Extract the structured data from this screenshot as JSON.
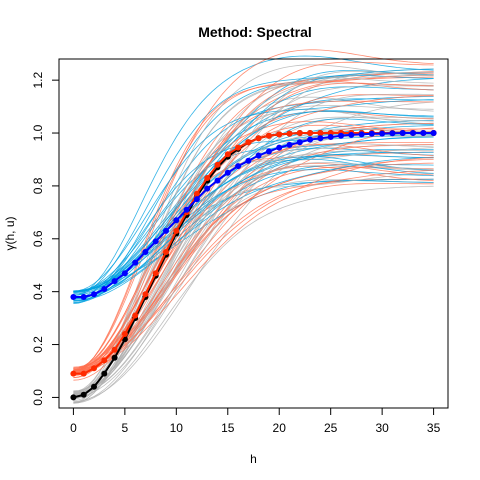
{
  "chart_data": {
    "type": "line",
    "title": "Method: Spectral",
    "xlabel": "h",
    "ylabel": "γ(h, u)",
    "xlim": [
      -1.4,
      36.4
    ],
    "ylim": [
      -0.04,
      1.28
    ],
    "xticks": [
      "0",
      "5",
      "10",
      "15",
      "20",
      "25",
      "30",
      "35"
    ],
    "yticks": [
      "0.0",
      "0.2",
      "0.4",
      "0.6",
      "0.8",
      "1.0",
      "1.2"
    ],
    "grid": false,
    "colors": {
      "black": "#000000",
      "red": "#ff2a00",
      "blue": "#0000ff",
      "cyan": "#00a0e0",
      "salmon": "#ff7050",
      "gray": "#b0b0b0"
    },
    "x": [
      0,
      1,
      2,
      3,
      4,
      5,
      6,
      7,
      8,
      9,
      10,
      11,
      12,
      13,
      14,
      15,
      16,
      17,
      18,
      19,
      20,
      21,
      22,
      23,
      24,
      25,
      26,
      27,
      28,
      29,
      30,
      31,
      32,
      33,
      34,
      35
    ],
    "series": [
      {
        "color": "black",
        "values": [
          0.0,
          0.01,
          0.04,
          0.09,
          0.15,
          0.22,
          0.3,
          0.38,
          0.46,
          0.54,
          0.62,
          0.69,
          0.76,
          0.82,
          0.87,
          0.91,
          0.94,
          0.965,
          0.98,
          0.99,
          0.995,
          0.998,
          1.0,
          1.0,
          1.0,
          1.0,
          1.0,
          1.0,
          1.0,
          1.0,
          1.0,
          1.0,
          1.0,
          1.0,
          1.0,
          1.0
        ]
      },
      {
        "color": "red",
        "values": [
          0.09,
          0.09,
          0.11,
          0.14,
          0.18,
          0.24,
          0.31,
          0.39,
          0.47,
          0.55,
          0.63,
          0.7,
          0.77,
          0.83,
          0.88,
          0.92,
          0.945,
          0.965,
          0.98,
          0.99,
          0.995,
          0.998,
          1.0,
          1.0,
          1.0,
          1.0,
          1.0,
          1.0,
          1.0,
          1.0,
          1.0,
          1.0,
          1.0,
          1.0,
          1.0,
          1.0
        ]
      },
      {
        "color": "blue",
        "values": [
          0.38,
          0.38,
          0.39,
          0.41,
          0.44,
          0.47,
          0.51,
          0.55,
          0.59,
          0.63,
          0.67,
          0.71,
          0.75,
          0.79,
          0.82,
          0.85,
          0.875,
          0.895,
          0.915,
          0.93,
          0.945,
          0.955,
          0.965,
          0.975,
          0.98,
          0.985,
          0.99,
          0.993,
          0.995,
          0.997,
          0.998,
          0.999,
          1.0,
          1.0,
          1.0,
          1.0
        ]
      }
    ]
  }
}
